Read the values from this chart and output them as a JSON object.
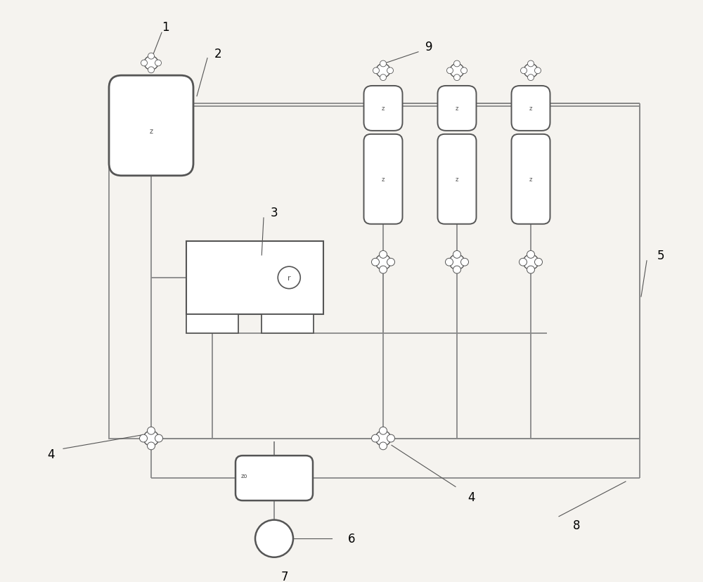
{
  "bg_color": "#f5f3ef",
  "line_color": "#888888",
  "dark_color": "#555555",
  "figsize": [
    10.0,
    8.29
  ],
  "dpi": 100,
  "labels": [
    "1",
    "2",
    "3",
    "4",
    "5",
    "6",
    "7",
    "8",
    "9"
  ]
}
